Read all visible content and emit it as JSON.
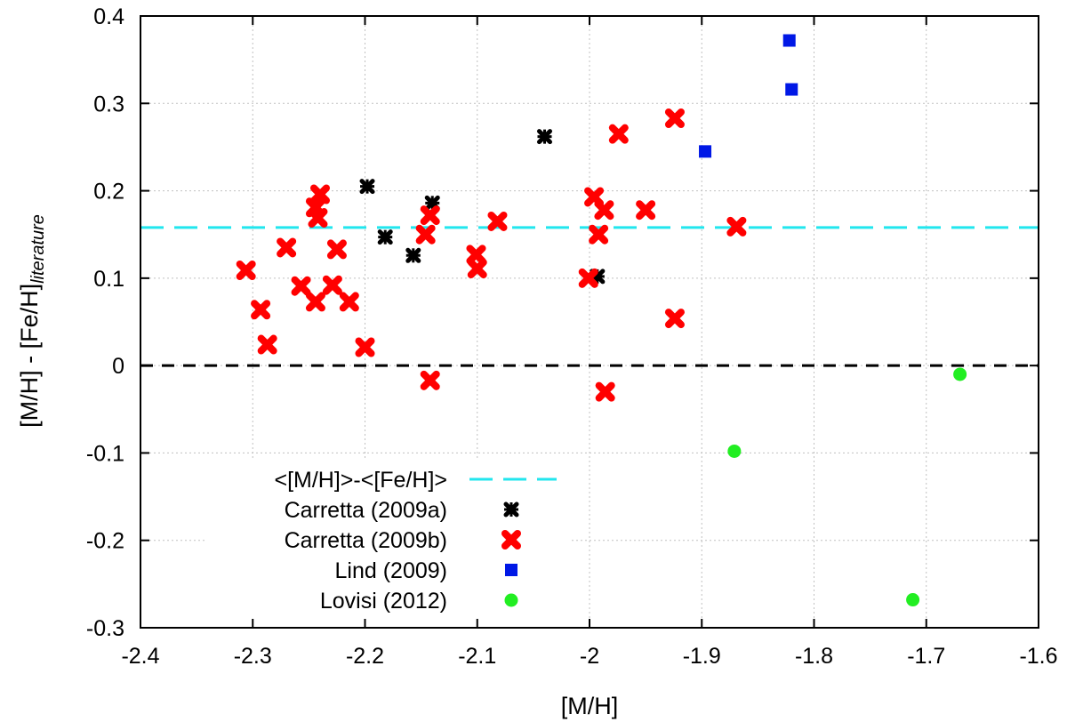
{
  "chart_data": {
    "type": "scatter",
    "title": "",
    "xlabel": "[M/H]",
    "ylabel": "[M/H] - [Fe/H]",
    "ylabel_subscript": "literature",
    "xlim": [
      -2.4,
      -1.6
    ],
    "ylim": [
      -0.3,
      0.4
    ],
    "x_ticks": [
      -2.4,
      -2.3,
      -2.2,
      -2.1,
      -2.0,
      -1.9,
      -1.8,
      -1.7,
      -1.6
    ],
    "y_ticks": [
      -0.3,
      -0.2,
      -0.1,
      0,
      0.1,
      0.2,
      0.3,
      0.4
    ],
    "x_tick_labels": [
      "-2.4",
      "-2.3",
      "-2.2",
      "-2.1",
      "-2",
      "-1.9",
      "-1.8",
      "-1.7",
      "-1.6"
    ],
    "y_tick_labels": [
      "-0.3",
      "-0.2",
      "-0.1",
      "0",
      "0.1",
      "0.2",
      "0.3",
      "0.4"
    ],
    "grid": true,
    "legend_position": "bottom-left",
    "reference_lines": [
      {
        "name": "<[M/H]>-<[Fe/H]>",
        "y": 0.158,
        "color": "#22e6ee",
        "style": "long-dash",
        "in_legend": true
      },
      {
        "name": "zero",
        "y": 0,
        "color": "#000000",
        "style": "dash",
        "in_legend": false
      }
    ],
    "series": [
      {
        "name": "Carretta (2009a)",
        "marker": "star",
        "color": "#000000",
        "points": [
          [
            -2.198,
            0.205
          ],
          [
            -2.182,
            0.147
          ],
          [
            -2.157,
            0.126
          ],
          [
            -2.14,
            0.186
          ],
          [
            -2.04,
            0.262
          ],
          [
            -1.993,
            0.102
          ]
        ]
      },
      {
        "name": "Carretta (2009b)",
        "marker": "x",
        "color": "#ff0000",
        "points": [
          [
            -2.306,
            0.109
          ],
          [
            -2.293,
            0.064
          ],
          [
            -2.287,
            0.024
          ],
          [
            -2.27,
            0.135
          ],
          [
            -2.257,
            0.091
          ],
          [
            -2.244,
            0.073
          ],
          [
            -2.244,
            0.181
          ],
          [
            -2.24,
            0.196
          ],
          [
            -2.242,
            0.169
          ],
          [
            -2.229,
            0.092
          ],
          [
            -2.225,
            0.133
          ],
          [
            -2.214,
            0.073
          ],
          [
            -2.2,
            0.021
          ],
          [
            -2.142,
            -0.017
          ],
          [
            -2.142,
            0.172
          ],
          [
            -2.146,
            0.15
          ],
          [
            -2.101,
            0.127
          ],
          [
            -2.1,
            0.111
          ],
          [
            -2.082,
            0.165
          ],
          [
            -2.001,
            0.1
          ],
          [
            -1.996,
            0.193
          ],
          [
            -1.992,
            0.15
          ],
          [
            -1.987,
            0.178
          ],
          [
            -1.986,
            -0.03
          ],
          [
            -1.974,
            0.265
          ],
          [
            -1.95,
            0.178
          ],
          [
            -1.924,
            0.283
          ],
          [
            -1.924,
            0.054
          ],
          [
            -1.869,
            0.159
          ]
        ]
      },
      {
        "name": "Lind (2009)",
        "marker": "square",
        "color": "#0018e6",
        "points": [
          [
            -1.897,
            0.245
          ],
          [
            -1.822,
            0.372
          ],
          [
            -1.82,
            0.316
          ]
        ]
      },
      {
        "name": "Lovisi (2012)",
        "marker": "circle",
        "color": "#22ee22",
        "points": [
          [
            -1.871,
            -0.098
          ],
          [
            -1.712,
            -0.268
          ],
          [
            -1.67,
            -0.01
          ]
        ]
      }
    ]
  }
}
